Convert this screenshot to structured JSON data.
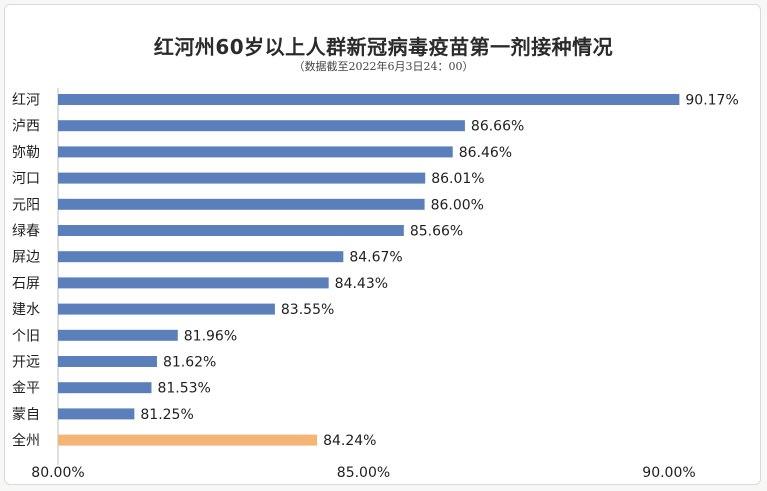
{
  "chart_data": {
    "type": "bar",
    "orientation": "horizontal",
    "title": "红河州60岁以上人群新冠病毒疫苗第一剂接种情况",
    "subtitle": "（数据截至2022年6月3日24：00）",
    "categories": [
      "红河",
      "泸西",
      "弥勒",
      "河口",
      "元阳",
      "绿春",
      "屏边",
      "石屏",
      "建水",
      "个旧",
      "开远",
      "金平",
      "蒙自",
      "全州"
    ],
    "values": [
      90.17,
      86.66,
      86.46,
      86.01,
      86.0,
      85.66,
      84.67,
      84.43,
      83.55,
      81.96,
      81.62,
      81.53,
      81.25,
      84.24
    ],
    "value_labels": [
      "90.17%",
      "86.66%",
      "86.46%",
      "86.01%",
      "86.00%",
      "85.66%",
      "84.67%",
      "84.43%",
      "83.55%",
      "81.96%",
      "81.62%",
      "81.53%",
      "81.25%",
      "84.24%"
    ],
    "xlim": [
      80,
      90
    ],
    "x_ticks": [
      "80.00%",
      "85.00%",
      "90.00%"
    ],
    "colors": {
      "bar": "#5b7fba",
      "highlight": "#f5b576"
    },
    "highlight_category": "全州",
    "grid": false,
    "legend": "none"
  }
}
